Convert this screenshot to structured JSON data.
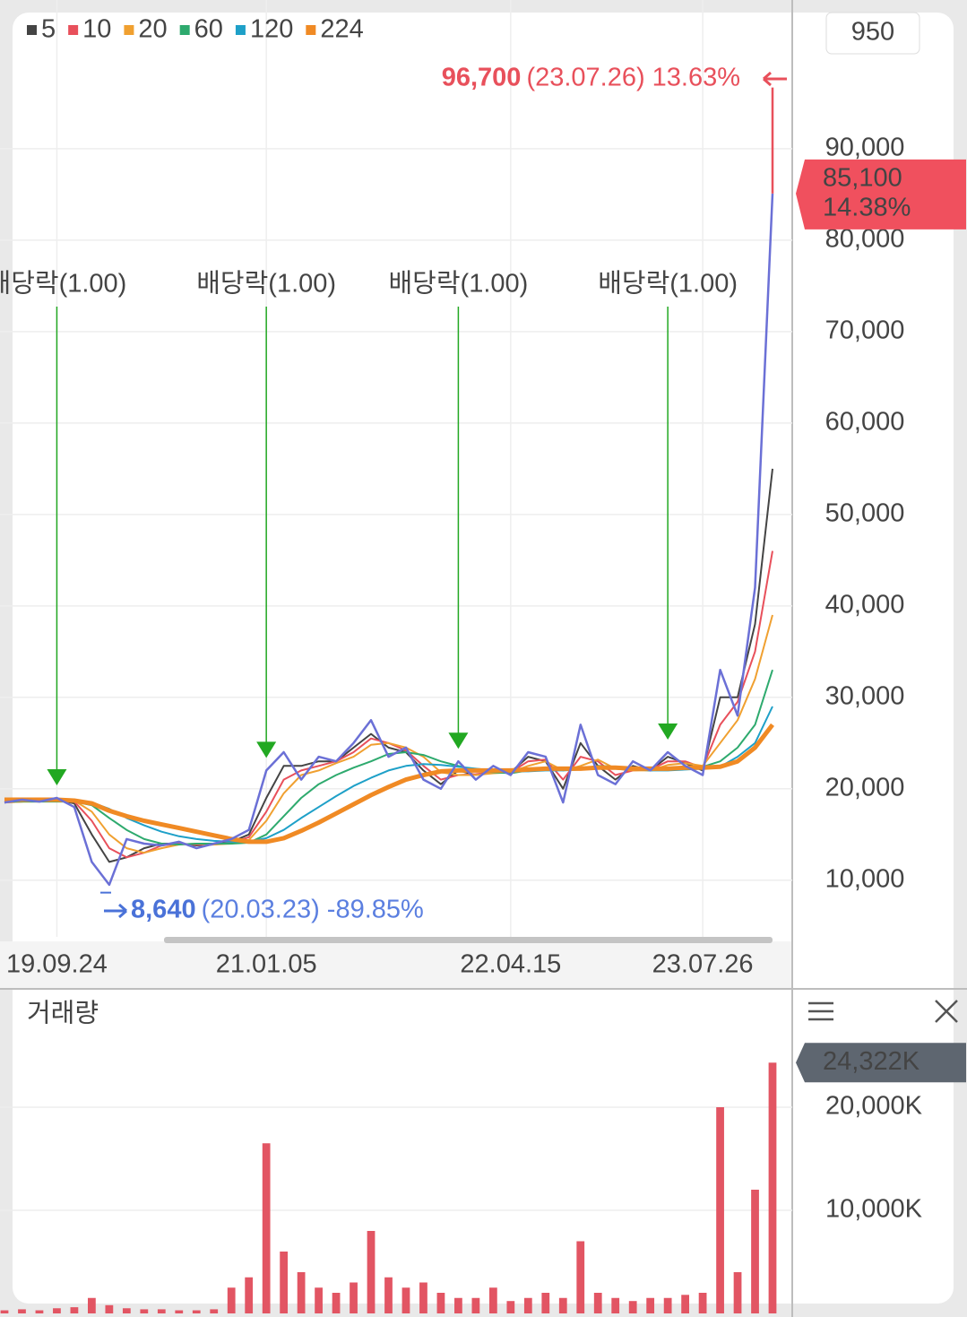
{
  "chart_data": [
    {
      "type": "line",
      "categories": [
        null,
        null,
        null,
        "19.09.24",
        null,
        null,
        null,
        null,
        null,
        null,
        null,
        null,
        null,
        null,
        null,
        "21.01.05",
        null,
        null,
        null,
        null,
        null,
        null,
        null,
        null,
        null,
        null,
        null,
        null,
        null,
        "22.04.15",
        null,
        null,
        null,
        null,
        null,
        null,
        null,
        null,
        null,
        null,
        "23.07.26",
        null,
        null,
        null,
        null
      ],
      "series": [
        {
          "color": "#6b70d6",
          "values": [
            18500,
            18800,
            18600,
            19000,
            18000,
            12000,
            9500,
            14500,
            14000,
            13800,
            14200,
            13500,
            14000,
            14500,
            15500,
            22000,
            24000,
            21000,
            23500,
            23000,
            25000,
            27500,
            23500,
            24500,
            21000,
            20000,
            23000,
            21000,
            22500,
            21500,
            24000,
            23500,
            18500,
            27000,
            21500,
            20500,
            23000,
            22000,
            24000,
            22500,
            21500,
            33000,
            28000,
            42000,
            85100
          ]
        },
        {
          "name": "5",
          "color": "#444444",
          "values": [
            18500,
            18700,
            18700,
            18800,
            18400,
            15000,
            12000,
            12500,
            13500,
            14000,
            14000,
            13800,
            13900,
            14200,
            15000,
            19000,
            22500,
            22500,
            23000,
            23000,
            24500,
            26000,
            24500,
            24000,
            22000,
            20500,
            22000,
            21500,
            22000,
            21800,
            23500,
            23000,
            20000,
            25000,
            22500,
            21000,
            22500,
            22000,
            23500,
            22800,
            22000,
            30000,
            30000,
            38000,
            55000
          ]
        },
        {
          "name": "10",
          "color": "#e8505b",
          "values": [
            18500,
            18600,
            18700,
            18700,
            18600,
            16500,
            13500,
            12500,
            13000,
            13800,
            14000,
            13900,
            13900,
            14100,
            14700,
            17500,
            21000,
            22000,
            22500,
            23000,
            24000,
            25500,
            25000,
            24200,
            22500,
            21000,
            21500,
            21600,
            21800,
            21800,
            23000,
            23200,
            21000,
            23500,
            23000,
            21500,
            22000,
            22100,
            23000,
            23000,
            22300,
            27000,
            29500,
            35000,
            46000
          ]
        },
        {
          "name": "20",
          "color": "#f0a030",
          "values": [
            18500,
            18600,
            18600,
            18700,
            18700,
            17500,
            15000,
            13500,
            13000,
            13500,
            13900,
            14000,
            13900,
            14000,
            14400,
            16500,
            19500,
            21500,
            22000,
            22800,
            23500,
            24800,
            25000,
            24500,
            23500,
            21800,
            21500,
            21500,
            21700,
            21800,
            22500,
            23000,
            22000,
            22500,
            23200,
            22200,
            22000,
            22000,
            22600,
            22800,
            22500,
            25000,
            27500,
            32000,
            39000
          ]
        },
        {
          "name": "60",
          "color": "#2eaa6e",
          "values": [
            18600,
            18600,
            18600,
            18600,
            18600,
            18200,
            16800,
            15500,
            14500,
            14000,
            13900,
            14000,
            14000,
            14000,
            14100,
            15000,
            17000,
            19000,
            20500,
            21500,
            22300,
            23000,
            23800,
            24000,
            23700,
            23000,
            22500,
            22000,
            21800,
            21700,
            22000,
            22300,
            22100,
            22200,
            22500,
            22400,
            22200,
            22000,
            22200,
            22400,
            22400,
            23000,
            24500,
            27000,
            33000
          ]
        },
        {
          "name": "120",
          "color": "#1ea0c8",
          "values": [
            18700,
            18700,
            18700,
            18700,
            18700,
            18500,
            17800,
            16800,
            16000,
            15300,
            14800,
            14500,
            14300,
            14200,
            14200,
            14600,
            15500,
            16800,
            18000,
            19200,
            20300,
            21200,
            22000,
            22500,
            22700,
            22600,
            22400,
            22200,
            22000,
            21900,
            21900,
            22000,
            22000,
            22100,
            22200,
            22200,
            22100,
            22000,
            22000,
            22100,
            22200,
            22400,
            23500,
            25000,
            29000
          ]
        },
        {
          "name": "224",
          "color": "#f08a24",
          "values": [
            18800,
            18800,
            18800,
            18800,
            18700,
            18400,
            17600,
            17000,
            16500,
            16100,
            15700,
            15300,
            14900,
            14500,
            14200,
            14200,
            14600,
            15400,
            16300,
            17300,
            18300,
            19300,
            20200,
            21000,
            21500,
            21900,
            22000,
            22000,
            22000,
            22000,
            22100,
            22200,
            22200,
            22200,
            22300,
            22300,
            22200,
            22200,
            22200,
            22300,
            22300,
            22400,
            23000,
            24500,
            27000
          ]
        }
      ],
      "ylim": [
        3800,
        104800
      ],
      "yticks": [
        {
          "value": 10000,
          "label": "10,000"
        },
        {
          "value": 20000,
          "label": "20,000"
        },
        {
          "value": 30000,
          "label": "30,000"
        },
        {
          "value": 40000,
          "label": "40,000"
        },
        {
          "value": 50000,
          "label": "50,000"
        },
        {
          "value": 60000,
          "label": "60,000"
        },
        {
          "value": 70000,
          "label": "70,000"
        },
        {
          "value": 80000,
          "label": "80,000"
        },
        {
          "value": 90000,
          "label": "90,000"
        }
      ],
      "grid": true,
      "period_box": "950",
      "high": {
        "value": 96700,
        "label": "96,700",
        "date": "(23.07.26)",
        "change": "13.63%",
        "color": "#e8505b"
      },
      "low": {
        "value": 8640,
        "label": "8,640",
        "date": "(20.03.23)",
        "change": "-89.85%",
        "color": "#4a72d8"
      },
      "current": {
        "value": 85100,
        "label": "85,100",
        "change": "14.38%",
        "color": "#f0505e"
      },
      "events": [
        {
          "label": "배당락(1.00)",
          "category_index": 3
        },
        {
          "label": "배당락(1.00)",
          "category_index": 15
        },
        {
          "label": "배당락(1.00)",
          "category_index": 26
        },
        {
          "label": "배당락(1.00)",
          "category_index": 38
        }
      ],
      "event_color": "#22a822"
    },
    {
      "type": "bar",
      "title": "거래량",
      "color": "#e25563",
      "values": [
        300,
        400,
        300,
        500,
        600,
        1500,
        800,
        500,
        400,
        400,
        300,
        300,
        400,
        2500,
        3500,
        16500,
        6000,
        4000,
        2500,
        2000,
        3000,
        8000,
        3500,
        2500,
        3000,
        2000,
        1500,
        1500,
        2500,
        1200,
        1500,
        2000,
        1500,
        7000,
        2000,
        1500,
        1200,
        1500,
        1500,
        1800,
        2000,
        20000,
        4000,
        12000,
        24322
      ],
      "ylim": [
        0,
        28000
      ],
      "yticks": [
        {
          "value": 10000,
          "label": "10,000K"
        },
        {
          "value": 20000,
          "label": "20,000K"
        }
      ],
      "grid": true,
      "current": {
        "value": 24322,
        "label": "24,322K",
        "color": "#5e6670"
      }
    }
  ]
}
